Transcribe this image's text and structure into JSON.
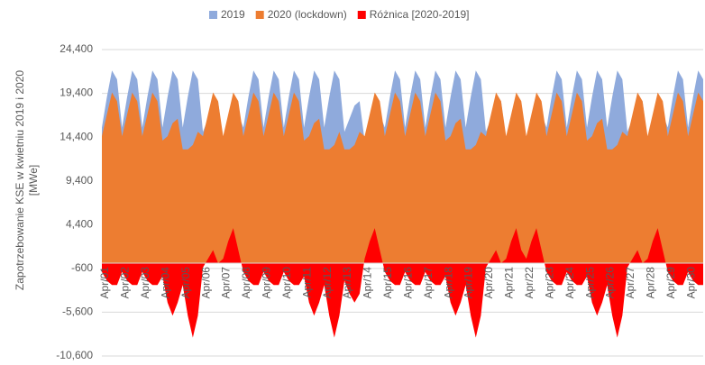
{
  "chart_data": {
    "type": "area",
    "y_label": "Zapotrzebowanie KSE w kwietniu 2019 i 2020 [MWe]",
    "ylim": [
      -10600,
      24400
    ],
    "yticks": [
      {
        "value": -10600,
        "label": "-10,600"
      },
      {
        "value": -5600,
        "label": "-5,600"
      },
      -600,
      {
        "value": 4400,
        "label": "4,400"
      },
      {
        "value": 9400,
        "label": "9,400"
      },
      {
        "value": 14400,
        "label": "14,400"
      },
      {
        "value": 19400,
        "label": "19,400"
      },
      {
        "value": 24400,
        "label": "24,400"
      }
    ],
    "grid": true,
    "legend": "top",
    "categories": [
      "Apr/01",
      null,
      null,
      null,
      "Apr/02",
      null,
      null,
      null,
      "Apr/03",
      null,
      null,
      null,
      "Apr/04",
      null,
      null,
      null,
      "Apr/05",
      null,
      null,
      null,
      "Apr/06",
      null,
      null,
      null,
      "Apr/07",
      null,
      null,
      null,
      "Apr/08",
      null,
      null,
      null,
      "Apr/09",
      null,
      null,
      null,
      "Apr/10",
      null,
      null,
      null,
      "Apr/11",
      null,
      null,
      null,
      "Apr/12",
      null,
      null,
      null,
      "Apr/13",
      null,
      null,
      null,
      "Apr/14",
      null,
      null,
      null,
      "Apr/15",
      null,
      null,
      null,
      "Apr/16",
      null,
      null,
      null,
      "Apr/17",
      null,
      null,
      null,
      "Apr/18",
      null,
      null,
      null,
      "Apr/19",
      null,
      null,
      null,
      "Apr/20",
      null,
      null,
      null,
      "Apr/21",
      null,
      null,
      null,
      "Apr/22",
      null,
      null,
      null,
      "Apr/23",
      null,
      null,
      null,
      "Apr/24",
      null,
      null,
      null,
      "Apr/25",
      null,
      null,
      null,
      "Apr/26",
      null,
      null,
      null,
      "Apr/27",
      null,
      null,
      null,
      "Apr/28",
      null,
      null,
      null,
      "Apr/29",
      null,
      null,
      null,
      "Apr/30",
      null,
      null,
      null
    ],
    "series": [
      {
        "name": "2019",
        "color": "#8faadc",
        "values": [
          15500,
          19000,
          22000,
          21000,
          15500,
          19000,
          22000,
          21000,
          15500,
          19000,
          22000,
          21000,
          15500,
          19000,
          22000,
          21000,
          15500,
          19000,
          22000,
          21000,
          15000,
          16500,
          18000,
          18500,
          14000,
          14500,
          15500,
          17000,
          15500,
          19000,
          22000,
          21000,
          15500,
          19000,
          22000,
          21000,
          15500,
          19000,
          22000,
          21000,
          15500,
          19000,
          22000,
          21000,
          15500,
          19000,
          22000,
          21000,
          15000,
          16500,
          18000,
          18500,
          14000,
          14500,
          15500,
          17000,
          15500,
          19000,
          22000,
          21000,
          15500,
          19000,
          22000,
          21000,
          15500,
          19000,
          22000,
          21000,
          15500,
          19000,
          22000,
          21000,
          15500,
          19000,
          22000,
          21000,
          15000,
          16500,
          18000,
          18500,
          14000,
          14500,
          15500,
          17000,
          14000,
          14500,
          15500,
          17000,
          15500,
          19000,
          22000,
          21000,
          15500,
          19000,
          22000,
          21000,
          15500,
          19000,
          22000,
          21000,
          15500,
          19000,
          22000,
          21000,
          15000,
          16500,
          18000,
          18500,
          14000,
          14500,
          15500,
          17000,
          15500,
          19000,
          22000,
          21000,
          15500,
          19000,
          22000,
          21000
        ]
      },
      {
        "name": "2020 (lockdown)",
        "color": "#ed7d31",
        "values": [
          14500,
          17000,
          19500,
          18500,
          14500,
          17000,
          19500,
          18500,
          14500,
          17000,
          19500,
          18500,
          14000,
          14500,
          16000,
          16500,
          13000,
          13000,
          13500,
          15000,
          14500,
          17000,
          19500,
          18500,
          14500,
          17000,
          19500,
          18500,
          14500,
          17000,
          19500,
          18500,
          14500,
          17000,
          19500,
          18500,
          14500,
          17000,
          19500,
          18500,
          14000,
          14500,
          16000,
          16500,
          13000,
          13000,
          13500,
          15000,
          13000,
          13000,
          13500,
          15000,
          14500,
          17000,
          19500,
          18500,
          14500,
          17000,
          19500,
          18500,
          14500,
          17000,
          19500,
          18500,
          14500,
          17000,
          19500,
          18500,
          14000,
          14500,
          16000,
          16500,
          13000,
          13000,
          13500,
          15000,
          14500,
          17000,
          19500,
          18500,
          14500,
          17000,
          19500,
          18500,
          14500,
          17000,
          19500,
          18500,
          14500,
          17000,
          19500,
          18500,
          14500,
          17000,
          19500,
          18500,
          14000,
          14500,
          16000,
          16500,
          13000,
          13000,
          13500,
          15000,
          14500,
          17000,
          19500,
          18500,
          14500,
          17000,
          19500,
          18500,
          14500,
          17000,
          19500,
          18500,
          14500,
          17000,
          19500,
          18500
        ]
      },
      {
        "name": "Różnica [2020-2019]",
        "color": "#ff0000",
        "values": [
          -1000,
          -2000,
          -2500,
          -2500,
          -1000,
          -2000,
          -2500,
          -2500,
          -1000,
          -2000,
          -2500,
          -2500,
          -1500,
          -4500,
          -6000,
          -4500,
          -2500,
          -6000,
          -8500,
          -6000,
          -500,
          500,
          1500,
          0,
          500,
          2500,
          4000,
          1500,
          -1000,
          -2000,
          -2500,
          -2500,
          -1000,
          -2000,
          -2500,
          -2500,
          -1000,
          -2000,
          -2500,
          -2500,
          -1500,
          -4500,
          -6000,
          -4500,
          -2500,
          -6000,
          -8500,
          -6000,
          -2000,
          -3500,
          -4500,
          -3500,
          500,
          2500,
          4000,
          1500,
          -1000,
          -2000,
          -2500,
          -2500,
          -1000,
          -2000,
          -2500,
          -2500,
          -1000,
          -2000,
          -2500,
          -2500,
          -1500,
          -4500,
          -6000,
          -4500,
          -2500,
          -6000,
          -8500,
          -6000,
          -500,
          500,
          1500,
          0,
          500,
          2500,
          4000,
          1500,
          500,
          2500,
          4000,
          1500,
          -1000,
          -2000,
          -2500,
          -2500,
          -1000,
          -2000,
          -2500,
          -2500,
          -1500,
          -4500,
          -6000,
          -4500,
          -2500,
          -6000,
          -8500,
          -6000,
          -500,
          500,
          1500,
          0,
          500,
          2500,
          4000,
          1500,
          -1000,
          -2000,
          -2500,
          -2500,
          -1000,
          -2000,
          -2500,
          -2500
        ]
      }
    ]
  }
}
